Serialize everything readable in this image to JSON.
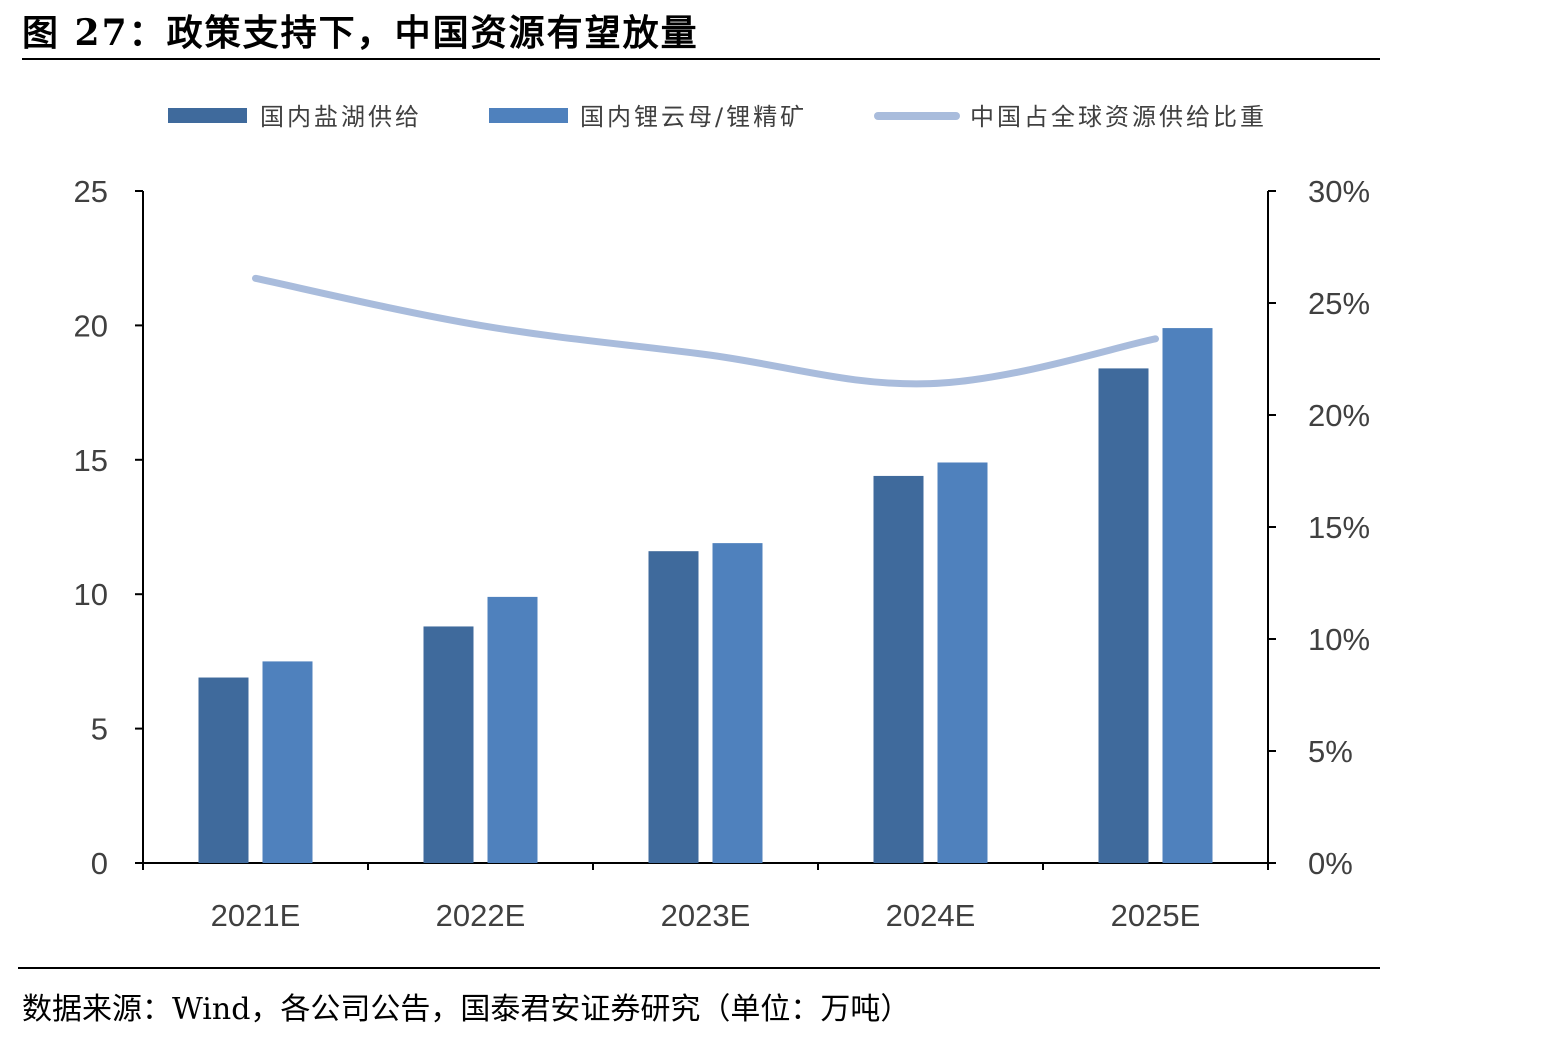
{
  "header": {
    "title": "图 27：政策支持下，中国资源有望放量"
  },
  "footer": {
    "source": "数据来源：Wind，各公司公告，国泰君安证券研究（单位：万吨）"
  },
  "chart_data": {
    "type": "bar",
    "categories": [
      "2021E",
      "2022E",
      "2023E",
      "2024E",
      "2025E"
    ],
    "series": [
      {
        "name": "国内盐湖供给",
        "type": "bar",
        "axis": "left",
        "color": "#3f6a9c",
        "values": [
          6.9,
          8.8,
          11.6,
          14.4,
          18.4
        ]
      },
      {
        "name": "国内锂云母/锂精矿",
        "type": "bar",
        "axis": "left",
        "color": "#4f81bd",
        "values": [
          7.5,
          9.9,
          11.9,
          14.9,
          19.9
        ]
      },
      {
        "name": "中国占全球资源供给比重",
        "type": "line",
        "axis": "right",
        "color": "#a9bcdc",
        "values": [
          26.1,
          24.0,
          22.7,
          21.4,
          23.4
        ]
      }
    ],
    "ylim_left": [
      0,
      25
    ],
    "ylim_right": [
      0,
      30
    ],
    "yticks_left": [
      "0",
      "5",
      "10",
      "15",
      "20",
      "25"
    ],
    "yticks_right": [
      "0%",
      "5%",
      "10%",
      "15%",
      "20%",
      "25%",
      "30%"
    ],
    "grid": false,
    "legend_position": "top"
  }
}
